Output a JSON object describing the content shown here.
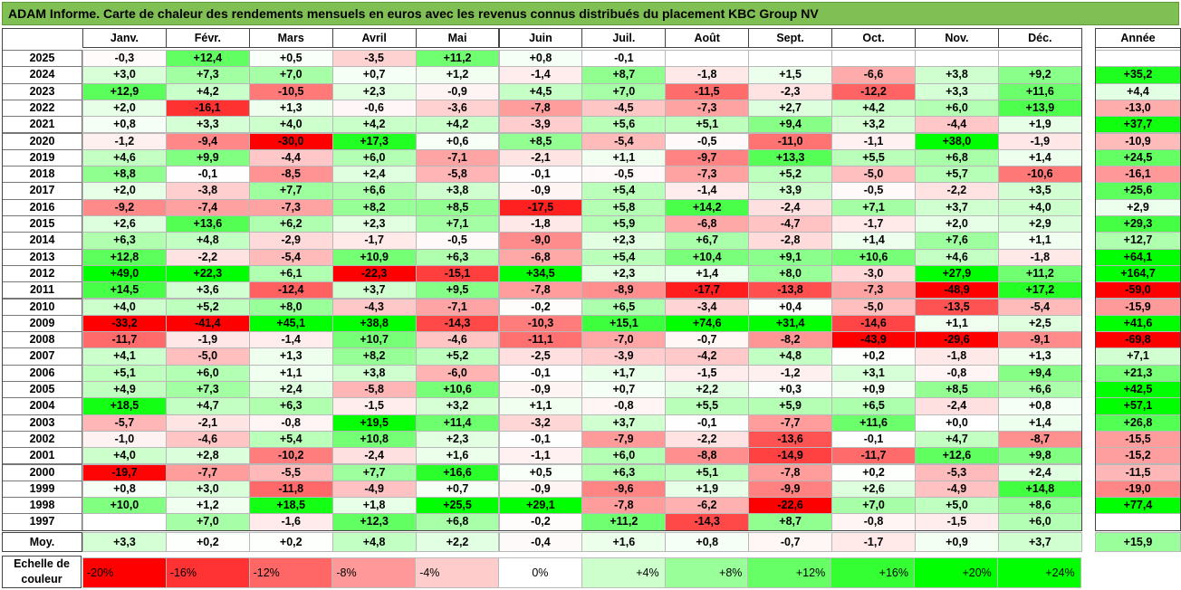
{
  "title": "ADAM Informe. Carte de chaleur des rendements mensuels en euros avec les revenus connus distribués du placement KBC Group NV",
  "scale": {
    "label": "Echelle de couleur",
    "steps": [
      "-20%",
      "-16%",
      "-12%",
      "-8%",
      "-4%",
      "0%",
      "+4%",
      "+8%",
      "+12%",
      "+16%",
      "+20%",
      "+24%"
    ]
  },
  "colors": {
    "negative": "#ff0000",
    "positive": "#00ff00",
    "neutral": "#ffffff",
    "title_bg": "#7fbf54"
  },
  "chart_data": {
    "type": "heatmap",
    "title": "ADAM Informe. Carte de chaleur des rendements mensuels en euros avec les revenus connus distribués du placement KBC Group NV",
    "columns": [
      "Janv.",
      "Févr.",
      "Mars",
      "Avril",
      "Mai",
      "Juin",
      "Juil.",
      "Août",
      "Sept.",
      "Oct.",
      "Nov.",
      "Déc."
    ],
    "year_column": "Année",
    "rows": [
      {
        "label": "2025",
        "values": [
          "-0,3",
          "+12,4",
          "+0,5",
          "-3,5",
          "+11,2",
          "+0,8",
          "-0,1",
          "",
          "",
          "",
          "",
          ""
        ],
        "year": ""
      },
      {
        "label": "2024",
        "values": [
          "+3,0",
          "+7,3",
          "+7,0",
          "+0,7",
          "+1,2",
          "-1,4",
          "+8,7",
          "-1,8",
          "+1,5",
          "-6,6",
          "+3,8",
          "+9,2"
        ],
        "year": "+35,2"
      },
      {
        "label": "2023",
        "values": [
          "+12,9",
          "+4,2",
          "-10,5",
          "+2,3",
          "-0,9",
          "+4,5",
          "+7,0",
          "-11,5",
          "-2,3",
          "-12,2",
          "+3,3",
          "+11,6"
        ],
        "year": "+4,4"
      },
      {
        "label": "2022",
        "values": [
          "+2,0",
          "-16,1",
          "+1,3",
          "-0,6",
          "-3,6",
          "-7,8",
          "-4,5",
          "-7,3",
          "+2,7",
          "+4,2",
          "+6,0",
          "+13,9"
        ],
        "year": "-13,0"
      },
      {
        "label": "2021",
        "values": [
          "+0,8",
          "+3,3",
          "+4,0",
          "+4,2",
          "+4,2",
          "-3,9",
          "+5,6",
          "+5,1",
          "+9,4",
          "+3,2",
          "-4,4",
          "+1,9"
        ],
        "year": "+37,7"
      },
      {
        "label": "2020",
        "values": [
          "-1,2",
          "-9,4",
          "-30,0",
          "+17,3",
          "+0,6",
          "+8,5",
          "-5,4",
          "-0,5",
          "-11,0",
          "-1,1",
          "+38,0",
          "-1,9"
        ],
        "year": "-10,9"
      },
      {
        "label": "2019",
        "values": [
          "+4,6",
          "+9,9",
          "-4,4",
          "+6,0",
          "-7,1",
          "-2,1",
          "+1,1",
          "-9,7",
          "+13,3",
          "+5,5",
          "+6,8",
          "+1,4"
        ],
        "year": "+24,5"
      },
      {
        "label": "2018",
        "values": [
          "+8,8",
          "-0,1",
          "-8,5",
          "+2,4",
          "-5,8",
          "-0,1",
          "-0,5",
          "-7,3",
          "+5,2",
          "-5,0",
          "+5,7",
          "-10,6"
        ],
        "year": "-16,1"
      },
      {
        "label": "2017",
        "values": [
          "+2,0",
          "-3,8",
          "+7,7",
          "+6,6",
          "+3,8",
          "-0,9",
          "+5,4",
          "-1,4",
          "+3,9",
          "-0,5",
          "-2,2",
          "+3,5"
        ],
        "year": "+25,6"
      },
      {
        "label": "2016",
        "values": [
          "-9,2",
          "-7,4",
          "-7,3",
          "+8,2",
          "+8,5",
          "-17,5",
          "+5,8",
          "+14,2",
          "-2,4",
          "+7,1",
          "+3,7",
          "+4,0"
        ],
        "year": "+2,9"
      },
      {
        "label": "2015",
        "values": [
          "+2,6",
          "+13,6",
          "+6,2",
          "+2,3",
          "+7,1",
          "-1,8",
          "+5,9",
          "-6,8",
          "-4,7",
          "-1,7",
          "+2,0",
          "+2,9"
        ],
        "year": "+29,3"
      },
      {
        "label": "2014",
        "values": [
          "+6,3",
          "+4,8",
          "-2,9",
          "-1,7",
          "-0,5",
          "-9,0",
          "+2,3",
          "+6,7",
          "-2,8",
          "+1,4",
          "+7,6",
          "+1,1"
        ],
        "year": "+12,7"
      },
      {
        "label": "2013",
        "values": [
          "+12,8",
          "-2,2",
          "-5,4",
          "+10,9",
          "+6,3",
          "-6,8",
          "+5,4",
          "+10,4",
          "+9,1",
          "+10,6",
          "+4,6",
          "-1,8"
        ],
        "year": "+64,1"
      },
      {
        "label": "2012",
        "values": [
          "+49,0",
          "+22,3",
          "+6,1",
          "-22,3",
          "-15,1",
          "+34,5",
          "+2,3",
          "+1,4",
          "+8,0",
          "-3,0",
          "+27,9",
          "+11,2"
        ],
        "year": "+164,7"
      },
      {
        "label": "2011",
        "values": [
          "+14,5",
          "+3,6",
          "-12,4",
          "+3,7",
          "+9,5",
          "-7,8",
          "-8,9",
          "-17,7",
          "-13,8",
          "-7,3",
          "-48,9",
          "+17,2"
        ],
        "year": "-59,0"
      },
      {
        "label": "2010",
        "values": [
          "+4,0",
          "+5,2",
          "+8,0",
          "-4,3",
          "-7,1",
          "-0,2",
          "+6,5",
          "-3,4",
          "+0,4",
          "-5,0",
          "-13,5",
          "-5,4"
        ],
        "year": "-15,9"
      },
      {
        "label": "2009",
        "values": [
          "-33,2",
          "-41,4",
          "+45,1",
          "+38,8",
          "-14,3",
          "-10,3",
          "+15,1",
          "+74,6",
          "+31,4",
          "-14,6",
          "+1,1",
          "+2,5"
        ],
        "year": "+41,6"
      },
      {
        "label": "2008",
        "values": [
          "-11,7",
          "-1,9",
          "-1,4",
          "+10,7",
          "-4,6",
          "-11,1",
          "-7,0",
          "-0,7",
          "-8,2",
          "-43,9",
          "-29,6",
          "-9,1"
        ],
        "year": "-69,8"
      },
      {
        "label": "2007",
        "values": [
          "+4,1",
          "-5,0",
          "+1,3",
          "+8,2",
          "+5,2",
          "-2,5",
          "-3,9",
          "-4,2",
          "+4,8",
          "+0,2",
          "-1,8",
          "+1,3"
        ],
        "year": "+7,1"
      },
      {
        "label": "2006",
        "values": [
          "+5,1",
          "+6,0",
          "+1,1",
          "+3,8",
          "-6,0",
          "-0,1",
          "+1,7",
          "-1,5",
          "-1,2",
          "+3,1",
          "-0,8",
          "+9,4"
        ],
        "year": "+21,3"
      },
      {
        "label": "2005",
        "values": [
          "+4,9",
          "+7,3",
          "+2,4",
          "-5,8",
          "+10,6",
          "-0,9",
          "+0,7",
          "+2,2",
          "+0,3",
          "+0,9",
          "+8,5",
          "+6,6"
        ],
        "year": "+42,5"
      },
      {
        "label": "2004",
        "values": [
          "+18,5",
          "+4,7",
          "+6,3",
          "-1,5",
          "+3,2",
          "+1,1",
          "-0,8",
          "+5,5",
          "+5,9",
          "+6,5",
          "-2,4",
          "+0,8"
        ],
        "year": "+57,1"
      },
      {
        "label": "2003",
        "values": [
          "-5,7",
          "-2,1",
          "-0,8",
          "+19,5",
          "+11,4",
          "-3,2",
          "+3,7",
          "-0,1",
          "-7,7",
          "+11,6",
          "+0,0",
          "+1,4"
        ],
        "year": "+26,8"
      },
      {
        "label": "2002",
        "values": [
          "-1,0",
          "-4,6",
          "+5,4",
          "+10,8",
          "+2,3",
          "-0,1",
          "-7,9",
          "-2,2",
          "-13,6",
          "-0,1",
          "+4,7",
          "-8,7"
        ],
        "year": "-15,5"
      },
      {
        "label": "2001",
        "values": [
          "+4,0",
          "+2,8",
          "-10,2",
          "-2,4",
          "+1,6",
          "-1,1",
          "+6,0",
          "-8,8",
          "-14,9",
          "-11,7",
          "+12,6",
          "+9,8"
        ],
        "year": "-15,2"
      },
      {
        "label": "2000",
        "values": [
          "-19,7",
          "-7,7",
          "-5,5",
          "+7,7",
          "+16,6",
          "+0,5",
          "+6,3",
          "+5,1",
          "-7,8",
          "+0,2",
          "-5,3",
          "+2,4"
        ],
        "year": "-11,5"
      },
      {
        "label": "1999",
        "values": [
          "+0,8",
          "+3,0",
          "-11,8",
          "-4,9",
          "+0,7",
          "-0,9",
          "-9,6",
          "+1,9",
          "-9,9",
          "+2,6",
          "-4,9",
          "+14,8"
        ],
        "year": "-19,0"
      },
      {
        "label": "1998",
        "values": [
          "+10,0",
          "+1,2",
          "+18,5",
          "+1,8",
          "+25,5",
          "+29,1",
          "-7,8",
          "-6,2",
          "-22,6",
          "+7,0",
          "+5,0",
          "+8,6"
        ],
        "year": "+77,4"
      },
      {
        "label": "1997",
        "values": [
          "",
          "+7,0",
          "-1,6",
          "+12,3",
          "+6,8",
          "-0,2",
          "+11,2",
          "-14,3",
          "+8,7",
          "-0,8",
          "-1,5",
          "+6,0"
        ],
        "year": ""
      }
    ],
    "average": {
      "label": "Moy.",
      "values": [
        "+3,3",
        "+0,2",
        "+0,2",
        "+4,8",
        "+2,2",
        "-0,4",
        "+1,6",
        "+0,8",
        "-0,7",
        "-1,7",
        "+0,9",
        "+3,7"
      ],
      "year": "+15,9"
    }
  }
}
